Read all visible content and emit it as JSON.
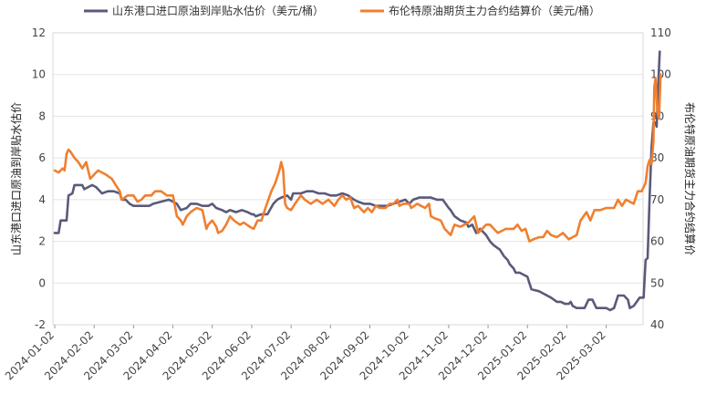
{
  "chart_data": {
    "type": "line",
    "title": "",
    "x_tick_labels": [
      "2024-01-02",
      "2024-02-02",
      "2024-03-02",
      "2024-04-02",
      "2024-05-02",
      "2024-06-02",
      "2024-07-02",
      "2024-08-02",
      "2024-09-02",
      "2024-10-02",
      "2024-11-02",
      "2024-12-02",
      "2025-01-02",
      "2025-02-02",
      "2025-03-02"
    ],
    "y_left": {
      "label": "山东港口进口原油到岸贴水估价",
      "range": [
        -2,
        12
      ],
      "ticks": [
        "-2",
        "0",
        "2",
        "4",
        "6",
        "8",
        "10",
        "12"
      ]
    },
    "y_right": {
      "label": "布伦特原油期货主力合约结算价",
      "range": [
        40,
        110
      ],
      "ticks": [
        "40",
        "50",
        "60",
        "70",
        "80",
        "90",
        "100",
        "110"
      ]
    },
    "x_range": [
      0,
      14.75
    ],
    "grid": "horizontal",
    "legend_position": "top",
    "series": [
      {
        "name": "山东港口进口原油到岸贴水估价（美元/桶）",
        "axis": "left",
        "color": "#5a5a7a",
        "points": [
          [
            0,
            2.4
          ],
          [
            0.1,
            2.4
          ],
          [
            0.15,
            3.0
          ],
          [
            0.3,
            3.0
          ],
          [
            0.35,
            4.2
          ],
          [
            0.45,
            4.3
          ],
          [
            0.5,
            4.7
          ],
          [
            0.7,
            4.7
          ],
          [
            0.75,
            4.5
          ],
          [
            0.85,
            4.6
          ],
          [
            0.95,
            4.7
          ],
          [
            1.05,
            4.6
          ],
          [
            1.2,
            4.3
          ],
          [
            1.35,
            4.4
          ],
          [
            1.5,
            4.4
          ],
          [
            1.65,
            4.3
          ],
          [
            1.7,
            4.0
          ],
          [
            1.8,
            4.0
          ],
          [
            1.9,
            3.8
          ],
          [
            2.0,
            3.7
          ],
          [
            2.2,
            3.7
          ],
          [
            2.4,
            3.7
          ],
          [
            2.5,
            3.8
          ],
          [
            2.7,
            3.9
          ],
          [
            2.9,
            4.0
          ],
          [
            3.0,
            3.9
          ],
          [
            3.1,
            3.8
          ],
          [
            3.2,
            3.5
          ],
          [
            3.35,
            3.6
          ],
          [
            3.45,
            3.8
          ],
          [
            3.6,
            3.8
          ],
          [
            3.75,
            3.7
          ],
          [
            3.9,
            3.7
          ],
          [
            4.0,
            3.8
          ],
          [
            4.1,
            3.6
          ],
          [
            4.25,
            3.5
          ],
          [
            4.35,
            3.4
          ],
          [
            4.45,
            3.5
          ],
          [
            4.6,
            3.4
          ],
          [
            4.75,
            3.5
          ],
          [
            4.9,
            3.4
          ],
          [
            5.0,
            3.3
          ],
          [
            5.05,
            3.3
          ],
          [
            5.1,
            3.2
          ],
          [
            5.25,
            3.3
          ],
          [
            5.4,
            3.3
          ],
          [
            5.55,
            3.8
          ],
          [
            5.65,
            4.0
          ],
          [
            5.75,
            4.1
          ],
          [
            5.9,
            4.2
          ],
          [
            6.0,
            4.0
          ],
          [
            6.05,
            4.3
          ],
          [
            6.25,
            4.3
          ],
          [
            6.4,
            4.4
          ],
          [
            6.55,
            4.4
          ],
          [
            6.7,
            4.3
          ],
          [
            6.85,
            4.3
          ],
          [
            7.0,
            4.2
          ],
          [
            7.15,
            4.2
          ],
          [
            7.3,
            4.3
          ],
          [
            7.45,
            4.2
          ],
          [
            7.6,
            4.0
          ],
          [
            7.7,
            3.9
          ],
          [
            7.85,
            3.8
          ],
          [
            8.0,
            3.8
          ],
          [
            8.15,
            3.7
          ],
          [
            8.3,
            3.7
          ],
          [
            8.45,
            3.7
          ],
          [
            8.6,
            3.8
          ],
          [
            8.75,
            3.9
          ],
          [
            8.9,
            4.0
          ],
          [
            9.0,
            3.8
          ],
          [
            9.1,
            4.0
          ],
          [
            9.25,
            4.1
          ],
          [
            9.4,
            4.1
          ],
          [
            9.55,
            4.1
          ],
          [
            9.7,
            4.0
          ],
          [
            9.85,
            4.0
          ],
          [
            10.0,
            3.6
          ],
          [
            10.05,
            3.5
          ],
          [
            10.15,
            3.2
          ],
          [
            10.3,
            3.0
          ],
          [
            10.45,
            2.9
          ],
          [
            10.5,
            2.7
          ],
          [
            10.6,
            2.8
          ],
          [
            10.7,
            2.4
          ],
          [
            10.8,
            2.6
          ],
          [
            10.95,
            2.3
          ],
          [
            11.05,
            2.0
          ],
          [
            11.15,
            1.8
          ],
          [
            11.3,
            1.6
          ],
          [
            11.4,
            1.3
          ],
          [
            11.5,
            1.1
          ],
          [
            11.55,
            0.9
          ],
          [
            11.65,
            0.7
          ],
          [
            11.7,
            0.5
          ],
          [
            11.8,
            0.5
          ],
          [
            11.9,
            0.4
          ],
          [
            12.0,
            0.3
          ],
          [
            12.05,
            0.0
          ],
          [
            12.1,
            -0.3
          ],
          [
            12.3,
            -0.4
          ],
          [
            12.5,
            -0.6
          ],
          [
            12.6,
            -0.7
          ],
          [
            12.75,
            -0.9
          ],
          [
            12.85,
            -0.9
          ],
          [
            12.95,
            -1.0
          ],
          [
            13.05,
            -1.0
          ],
          [
            13.1,
            -0.9
          ],
          [
            13.15,
            -1.1
          ],
          [
            13.25,
            -1.2
          ],
          [
            13.35,
            -1.2
          ],
          [
            13.45,
            -1.2
          ],
          [
            13.55,
            -0.8
          ],
          [
            13.65,
            -0.8
          ],
          [
            13.75,
            -1.2
          ],
          [
            14.0,
            -1.2
          ],
          [
            14.1,
            -1.3
          ],
          [
            14.2,
            -1.2
          ],
          [
            14.3,
            -0.6
          ],
          [
            14.45,
            -0.6
          ],
          [
            14.55,
            -0.8
          ],
          [
            14.6,
            -1.2
          ],
          [
            14.7,
            -1.1
          ],
          [
            14.85,
            -0.7
          ],
          [
            14.95,
            -0.7
          ],
          [
            15.0,
            1.1
          ],
          [
            15.05,
            1.2
          ],
          [
            15.1,
            4.0
          ],
          [
            15.15,
            6.5
          ],
          [
            15.2,
            7.7
          ],
          [
            15.25,
            7.7
          ],
          [
            15.28,
            7.5
          ],
          [
            15.32,
            9.5
          ],
          [
            15.36,
            11.1
          ]
        ]
      },
      {
        "name": "布伦特原油期货主力合约结算价（美元/桶）",
        "axis": "right",
        "color": "#f07f2f",
        "points": [
          [
            0,
            77
          ],
          [
            0.1,
            76.5
          ],
          [
            0.2,
            77.5
          ],
          [
            0.25,
            77
          ],
          [
            0.3,
            81
          ],
          [
            0.35,
            82
          ],
          [
            0.4,
            81.5
          ],
          [
            0.5,
            80
          ],
          [
            0.6,
            79
          ],
          [
            0.7,
            77.5
          ],
          [
            0.8,
            79
          ],
          [
            0.9,
            75
          ],
          [
            1.0,
            76
          ],
          [
            1.1,
            77
          ],
          [
            1.2,
            76.5
          ],
          [
            1.3,
            76
          ],
          [
            1.45,
            75
          ],
          [
            1.55,
            73.5
          ],
          [
            1.65,
            72
          ],
          [
            1.7,
            70
          ],
          [
            1.85,
            71
          ],
          [
            2.0,
            71
          ],
          [
            2.1,
            69.5
          ],
          [
            2.2,
            70
          ],
          [
            2.3,
            71
          ],
          [
            2.45,
            71
          ],
          [
            2.55,
            72
          ],
          [
            2.7,
            72
          ],
          [
            2.85,
            71
          ],
          [
            3.0,
            71
          ],
          [
            3.1,
            66
          ],
          [
            3.2,
            65
          ],
          [
            3.25,
            64
          ],
          [
            3.35,
            66
          ],
          [
            3.45,
            67
          ],
          [
            3.6,
            68
          ],
          [
            3.75,
            67.5
          ],
          [
            3.85,
            63
          ],
          [
            3.9,
            64
          ],
          [
            4.0,
            65
          ],
          [
            4.1,
            63.5
          ],
          [
            4.15,
            62
          ],
          [
            4.25,
            62.5
          ],
          [
            4.35,
            64
          ],
          [
            4.45,
            66
          ],
          [
            4.55,
            65
          ],
          [
            4.7,
            64
          ],
          [
            4.8,
            64.5
          ],
          [
            4.95,
            63.5
          ],
          [
            5.05,
            63
          ],
          [
            5.15,
            65
          ],
          [
            5.25,
            65
          ],
          [
            5.35,
            68
          ],
          [
            5.5,
            72
          ],
          [
            5.6,
            74
          ],
          [
            5.7,
            77
          ],
          [
            5.75,
            79
          ],
          [
            5.8,
            77
          ],
          [
            5.85,
            69
          ],
          [
            5.9,
            68
          ],
          [
            6.0,
            67.5
          ],
          [
            6.1,
            69
          ],
          [
            6.25,
            71
          ],
          [
            6.35,
            70
          ],
          [
            6.5,
            69
          ],
          [
            6.65,
            70
          ],
          [
            6.8,
            69
          ],
          [
            6.95,
            70
          ],
          [
            7.1,
            68.5
          ],
          [
            7.2,
            70
          ],
          [
            7.3,
            71
          ],
          [
            7.4,
            70
          ],
          [
            7.5,
            70.5
          ],
          [
            7.6,
            68
          ],
          [
            7.7,
            68.5
          ],
          [
            7.85,
            67
          ],
          [
            7.95,
            68
          ],
          [
            8.05,
            67
          ],
          [
            8.15,
            68.5
          ],
          [
            8.25,
            68
          ],
          [
            8.4,
            68
          ],
          [
            8.5,
            69
          ],
          [
            8.6,
            69
          ],
          [
            8.7,
            70
          ],
          [
            8.75,
            68.5
          ],
          [
            8.85,
            69
          ],
          [
            9.0,
            69
          ],
          [
            9.05,
            68
          ],
          [
            9.2,
            69
          ],
          [
            9.3,
            68.5
          ],
          [
            9.4,
            68
          ],
          [
            9.5,
            69
          ],
          [
            9.55,
            66
          ],
          [
            9.65,
            65.5
          ],
          [
            9.8,
            65
          ],
          [
            9.9,
            63
          ],
          [
            10.0,
            62
          ],
          [
            10.05,
            61.5
          ],
          [
            10.15,
            64
          ],
          [
            10.3,
            63.5
          ],
          [
            10.4,
            64
          ],
          [
            10.5,
            64.5
          ],
          [
            10.55,
            65
          ],
          [
            10.65,
            66
          ],
          [
            10.7,
            64
          ],
          [
            10.75,
            62
          ],
          [
            10.85,
            63
          ],
          [
            10.95,
            64
          ],
          [
            11.05,
            64
          ],
          [
            11.15,
            63
          ],
          [
            11.25,
            62
          ],
          [
            11.35,
            62.5
          ],
          [
            11.45,
            63
          ],
          [
            11.55,
            63
          ],
          [
            11.65,
            63
          ],
          [
            11.75,
            64
          ],
          [
            11.85,
            62.5
          ],
          [
            11.95,
            63
          ],
          [
            12.05,
            60
          ],
          [
            12.15,
            60.5
          ],
          [
            12.3,
            61
          ],
          [
            12.4,
            61
          ],
          [
            12.5,
            62.5
          ],
          [
            12.6,
            61.5
          ],
          [
            12.75,
            61
          ],
          [
            12.9,
            62
          ],
          [
            13.0,
            61
          ],
          [
            13.05,
            60.5
          ],
          [
            13.15,
            61
          ],
          [
            13.25,
            61.5
          ],
          [
            13.35,
            65
          ],
          [
            13.5,
            67
          ],
          [
            13.6,
            65
          ],
          [
            13.7,
            67.5
          ],
          [
            13.85,
            67.5
          ],
          [
            14.0,
            68
          ],
          [
            14.2,
            68
          ],
          [
            14.3,
            70
          ],
          [
            14.4,
            68.5
          ],
          [
            14.5,
            70
          ],
          [
            14.6,
            69.5
          ],
          [
            14.7,
            69
          ],
          [
            14.8,
            72
          ],
          [
            14.9,
            72
          ],
          [
            15.0,
            74
          ],
          [
            15.05,
            78
          ],
          [
            15.1,
            79.5
          ],
          [
            15.15,
            78.5
          ],
          [
            15.2,
            84
          ],
          [
            15.22,
            97
          ],
          [
            15.25,
            99
          ],
          [
            15.3,
            91
          ],
          [
            15.34,
            89.5
          ],
          [
            15.38,
            100
          ]
        ]
      }
    ]
  }
}
